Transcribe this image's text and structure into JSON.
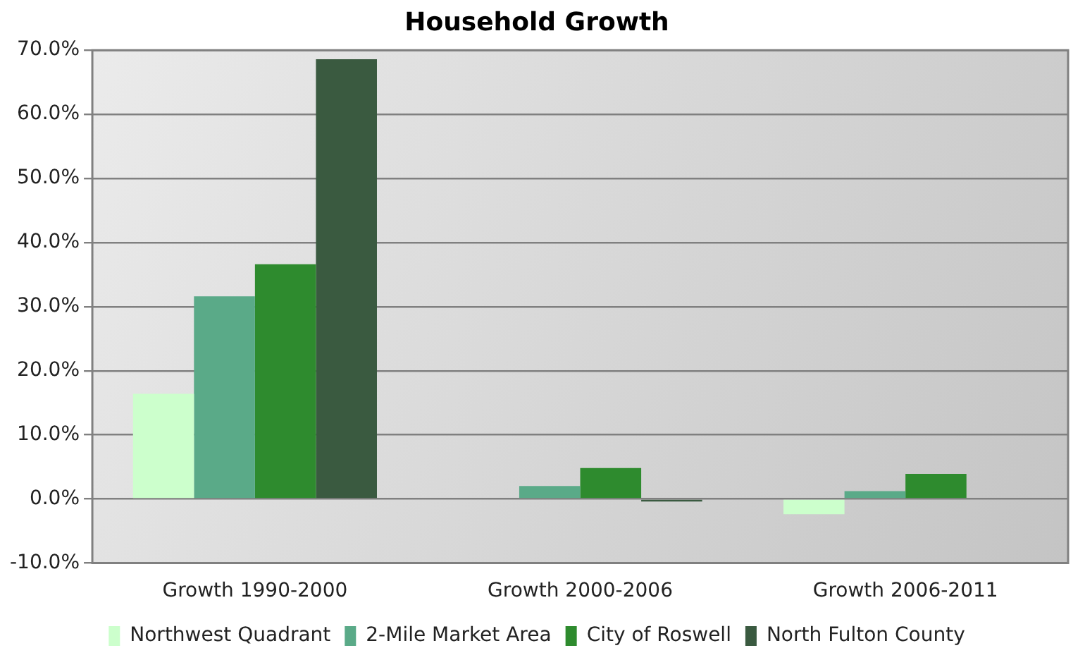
{
  "chart_data": {
    "type": "bar",
    "title": "Household Growth",
    "categories": [
      "Growth 1990-2000",
      "Growth 2000-2006",
      "Growth 2006-2011"
    ],
    "series": [
      {
        "name": "Northwest Quadrant",
        "color": "#ccffcc",
        "values": [
          16.4,
          null,
          -2.4
        ]
      },
      {
        "name": "2-Mile Market Area",
        "color": "#5aaa88",
        "values": [
          31.6,
          2.0,
          1.2
        ]
      },
      {
        "name": "City of Roswell",
        "color": "#2e8b2e",
        "values": [
          36.6,
          4.8,
          3.9
        ]
      },
      {
        "name": "North Fulton County",
        "color": "#3a5a40",
        "values": [
          68.6,
          -0.4,
          null
        ]
      }
    ],
    "ylim": [
      -10,
      70
    ],
    "yticks": [
      {
        "value": -10,
        "label": "-10.0%"
      },
      {
        "value": 0,
        "label": "0.0%"
      },
      {
        "value": 10,
        "label": "10.0%"
      },
      {
        "value": 20,
        "label": "20.0%"
      },
      {
        "value": 30,
        "label": "30.0%"
      },
      {
        "value": 40,
        "label": "40.0%"
      },
      {
        "value": 50,
        "label": "50.0%"
      },
      {
        "value": 60,
        "label": "60.0%"
      },
      {
        "value": 70,
        "label": "70.0%"
      }
    ],
    "grid": "y",
    "legend": "bottom"
  }
}
